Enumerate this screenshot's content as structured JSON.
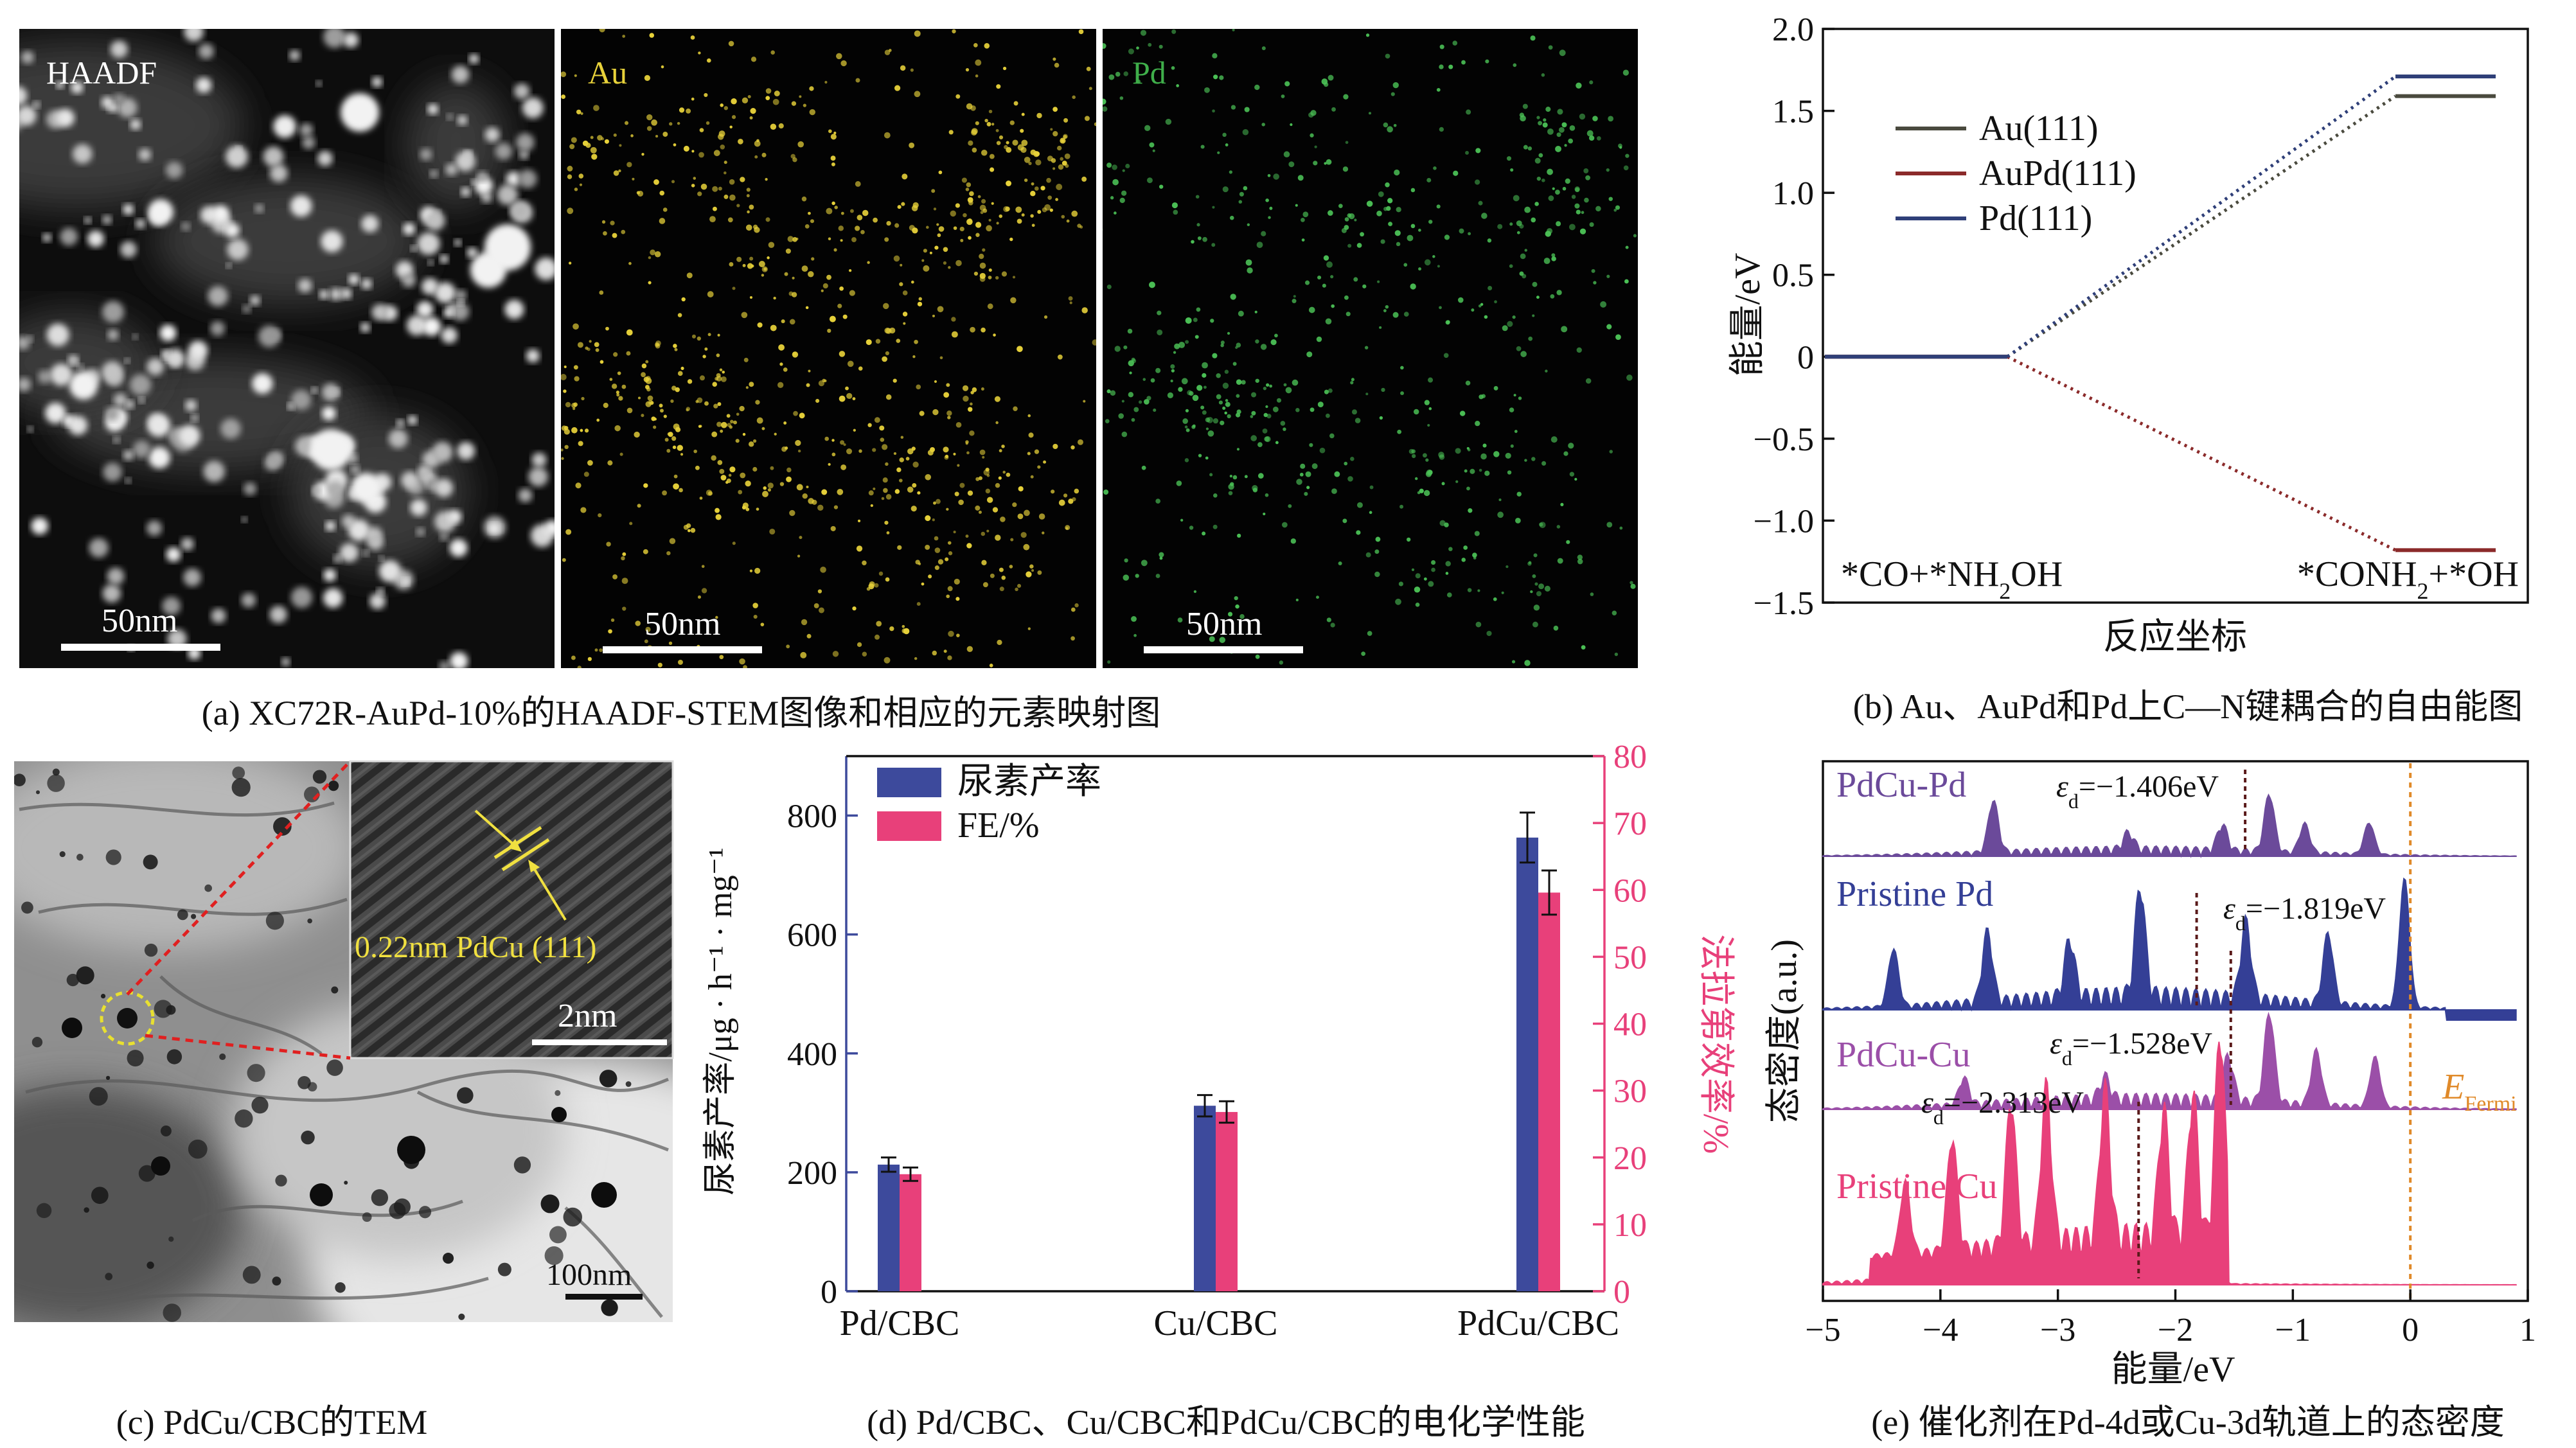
{
  "captions": {
    "a": "(a) XC72R-AuPd-10%的HAADF-STEM图像和相应的元素映射图",
    "b": "(b) Au、AuPd和Pd上C—N键耦合的自由能图",
    "c": "(c) PdCu/CBC的TEM",
    "d": "(d) Pd/CBC、Cu/CBC和PdCu/CBC的电化学性能",
    "e": "(e) 催化剂在Pd-4d或Cu-3d轨道上的态密度"
  },
  "panel_a": {
    "tiles": [
      {
        "label": "HAADF",
        "color": "#ffffff",
        "scale": "50nm"
      },
      {
        "label": "Au",
        "color": "#e8d23a",
        "scale": "50nm"
      },
      {
        "label": "Pd",
        "color": "#3fae4a",
        "scale": "50nm"
      }
    ]
  },
  "panel_c": {
    "inset_label": "0.22nm PdCu (111)",
    "inset_scale": "2nm",
    "scale": "100nm"
  },
  "chart_data": [
    {
      "id": "b",
      "type": "line",
      "ylabel": "能量/eV",
      "xlabel": "反应坐标",
      "ylim": [
        -1.5,
        2.0
      ],
      "yticks": [
        "2.0",
        "1.5",
        "1.0",
        "0.5",
        "0",
        "−0.5",
        "−1.0",
        "−1.5"
      ],
      "ytick_values": [
        2.0,
        1.5,
        1.0,
        0.5,
        0,
        -0.5,
        -1.0,
        -1.5
      ],
      "states": [
        "*CO+*NH₂OH",
        "*CONH₂+*OH"
      ],
      "legend_position": "upper-left",
      "series": [
        {
          "name": "Au(111)",
          "color": "#4a4a3e",
          "values": [
            0,
            1.59
          ]
        },
        {
          "name": "AuPd(111)",
          "color": "#8b2a2a",
          "values": [
            0,
            -1.18
          ]
        },
        {
          "name": "Pd(111)",
          "color": "#2f3f78",
          "values": [
            0,
            1.71
          ]
        }
      ]
    },
    {
      "id": "d",
      "type": "bar",
      "categories": [
        "Pd/CBC",
        "Cu/CBC",
        "PdCu/CBC"
      ],
      "ylabel": "尿素产率/μg · h⁻¹ · mg⁻¹",
      "y2label": "法拉第效率/%",
      "ylim": [
        0,
        900
      ],
      "y2lim": [
        0,
        80
      ],
      "yticks": [
        0,
        200,
        400,
        600,
        800
      ],
      "y2ticks": [
        0,
        10,
        20,
        30,
        40,
        50,
        60,
        70,
        80
      ],
      "legend_position": "top-left",
      "series": [
        {
          "name": "尿素产率",
          "axis": "left",
          "color": "#3d4a9c",
          "values": [
            213,
            312,
            763
          ],
          "errors": [
            12,
            18,
            42
          ]
        },
        {
          "name": "FE/%",
          "axis": "right",
          "color": "#e8407a",
          "values": [
            17.5,
            26.8,
            59.6
          ],
          "errors": [
            1.0,
            1.6,
            3.3
          ]
        }
      ]
    },
    {
      "id": "e",
      "type": "area",
      "ylabel": "态密度(a.u.)",
      "xlabel": "能量/eV",
      "xlim": [
        -5,
        1
      ],
      "xticks": [
        "−5",
        "−4",
        "−3",
        "−2",
        "−1",
        "0",
        "1"
      ],
      "xtick_values": [
        -5,
        -4,
        -3,
        -2,
        -1,
        0,
        1
      ],
      "fermi": {
        "label_E": "E",
        "label_sub": "Fermi",
        "x": 0
      },
      "series": [
        {
          "name": "PdCu-Pd",
          "color": "#6b4a9a",
          "d_band": -1.406,
          "d_label": "−1.406eV"
        },
        {
          "name": "Pristine Pd",
          "color": "#343f96",
          "d_band": -1.819,
          "d_label": "−1.819eV"
        },
        {
          "name": "PdCu-Cu",
          "color": "#9b4fa8",
          "d_band": -1.528,
          "d_label": "−1.528eV"
        },
        {
          "name": "Pristine Cu",
          "color": "#e8407a",
          "d_band": -2.313,
          "d_label": "−2.313eV"
        }
      ]
    }
  ]
}
